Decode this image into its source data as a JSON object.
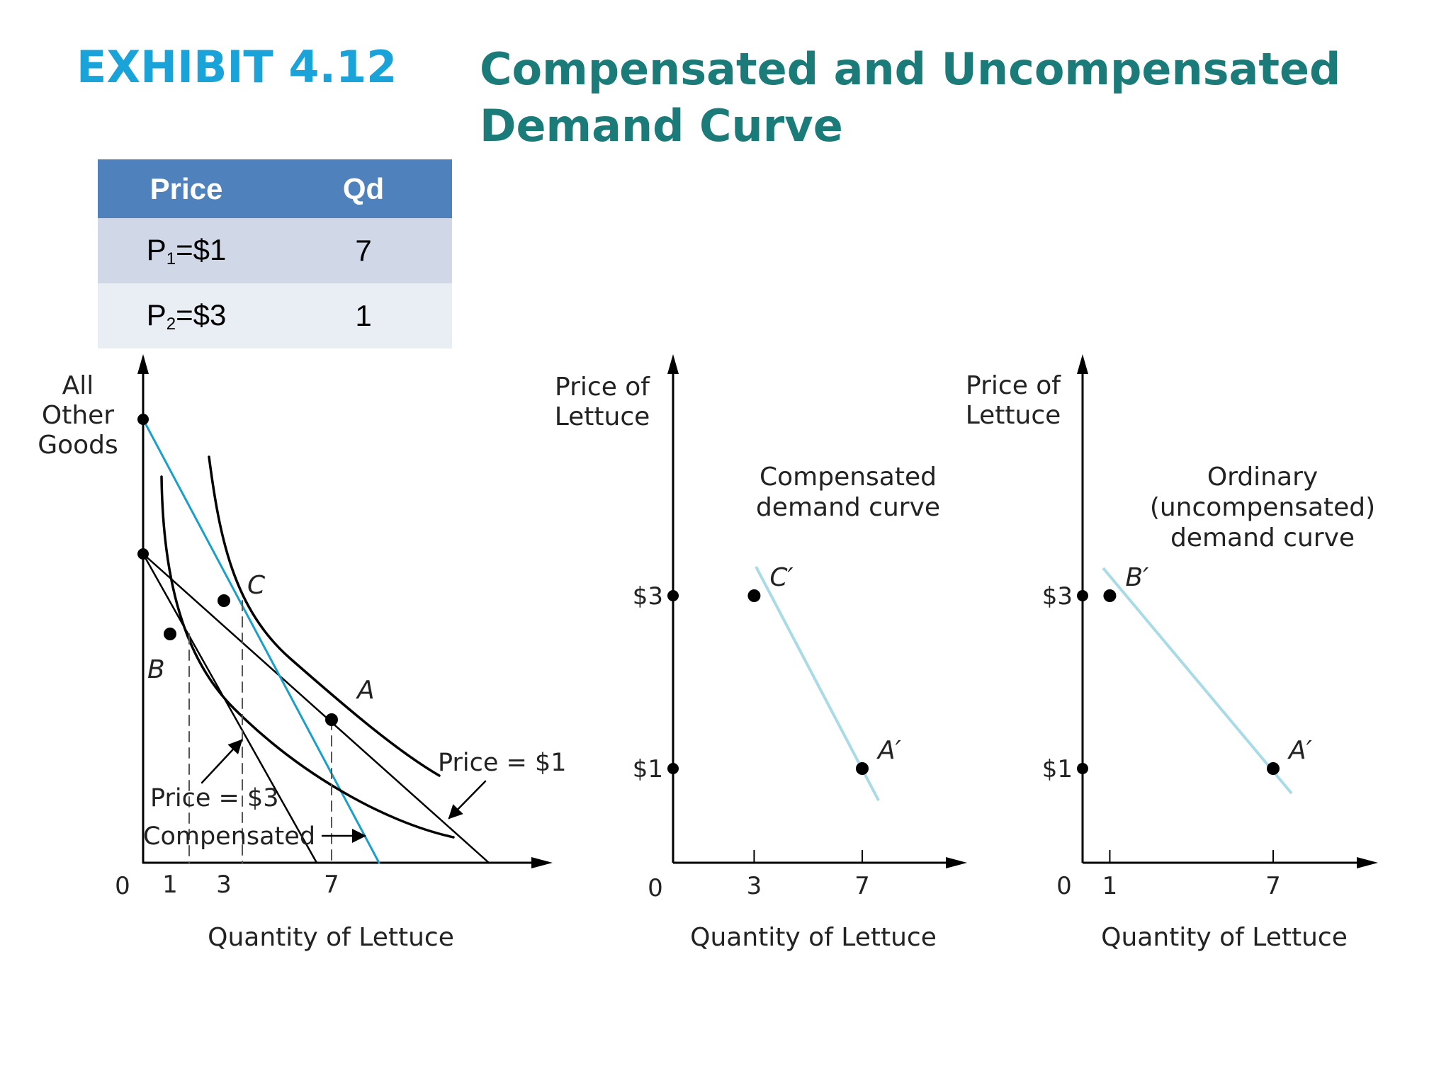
{
  "exhibit": {
    "number": "EXHIBIT 4.12",
    "title_line1": "Compensated and Uncompensated",
    "title_line2": "Demand Curve"
  },
  "table": {
    "headers": [
      "Price",
      "Qd"
    ],
    "rows": [
      {
        "price_label": "P",
        "price_sub": "1",
        "price_value": "=$1",
        "qd": "7"
      },
      {
        "price_label": "P",
        "price_sub": "2",
        "price_value": "=$3",
        "qd": "1"
      }
    ]
  },
  "chart_data": [
    {
      "type": "line",
      "ylabel": [
        "All",
        "Other",
        "Goods"
      ],
      "xlabel": "Quantity of Lettuce",
      "origin_label": "0",
      "x_ticks": [
        "1",
        "3",
        "7"
      ],
      "points": [
        {
          "name": "A",
          "x": 7
        },
        {
          "name": "B",
          "x": 1
        },
        {
          "name": "C",
          "x": 3
        }
      ],
      "annotations": [
        "Price = $1",
        "Price = $3",
        "Compensated"
      ],
      "colors": {
        "compensated_budget": "#1a9fc9",
        "curves": "#000000"
      }
    },
    {
      "type": "line",
      "ylabel": [
        "Price of",
        "Lettuce"
      ],
      "xlabel": "Quantity of Lettuce",
      "origin_label": "0",
      "curve_label": [
        "Compensated",
        "demand curve"
      ],
      "x_ticks": [
        "3",
        "7"
      ],
      "y_ticks": [
        "$1",
        "$3"
      ],
      "points": [
        {
          "name": "C′",
          "x": 3,
          "y": 3
        },
        {
          "name": "A′",
          "x": 7,
          "y": 1
        }
      ],
      "line_color": "#a8dbe6"
    },
    {
      "type": "line",
      "ylabel": [
        "Price of",
        "Lettuce"
      ],
      "xlabel": "Quantity of Lettuce",
      "origin_label": "0",
      "curve_label": [
        "Ordinary",
        "(uncompensated)",
        "demand curve"
      ],
      "x_ticks": [
        "1",
        "7"
      ],
      "y_ticks": [
        "$1",
        "$3"
      ],
      "points": [
        {
          "name": "B′",
          "x": 1,
          "y": 3
        },
        {
          "name": "A′",
          "x": 7,
          "y": 1
        }
      ],
      "line_color": "#a8dbe6"
    }
  ]
}
